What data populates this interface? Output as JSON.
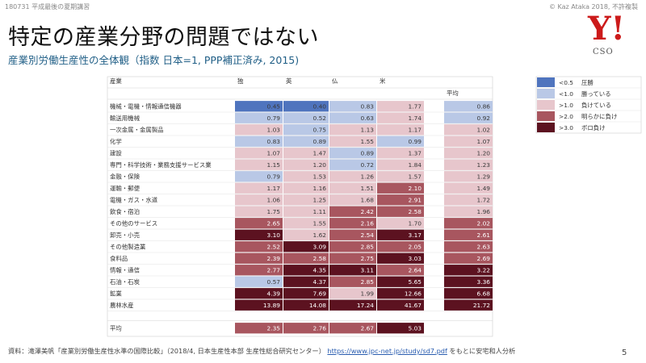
{
  "header": {
    "left": "180731 平成最後の夏期講習",
    "right": "© Kaz Ataka 2018, 不許複製"
  },
  "title": "特定の産業分野の問題ではない",
  "subtitle": "産業別労働生産性の全体観（指数 日本=1, PPP補正済み, 2015)",
  "logo": {
    "mark": "Y!",
    "sub": "CSO"
  },
  "footer": {
    "text_before": "資料：滝澤美帆「産業別労働生産性水準の国際比較」（2018/4, 日本生産性本部 生産性総合研究センター） ",
    "link": "https://www.jpc-net.jp/study/sd7.pdf",
    "text_after": " をもとに安宅和人分析"
  },
  "page_number": "5",
  "colors": {
    "lt05": "#4f74be",
    "lt10": "#b9c8e6",
    "gt10": "#e7c6cc",
    "gt20": "#a8565f",
    "gt30": "#5c1220",
    "text_dark": "#3a3a3a",
    "text_light": "#ffffff"
  },
  "chart_data": {
    "type": "heatmap",
    "corner_label": "産業",
    "average_header": "平均",
    "columns": [
      "独",
      "英",
      "仏",
      "米"
    ],
    "rows": [
      {
        "label": "機械・電機・情報通信機器",
        "values": [
          0.45,
          0.4,
          0.83,
          1.77
        ],
        "average": 0.86
      },
      {
        "label": "輸送用機械",
        "values": [
          0.79,
          0.52,
          0.63,
          1.74
        ],
        "average": 0.92
      },
      {
        "label": "一次金属・金属製品",
        "values": [
          1.03,
          0.75,
          1.13,
          1.17
        ],
        "average": 1.02
      },
      {
        "label": "化学",
        "values": [
          0.83,
          0.89,
          1.55,
          0.99
        ],
        "average": 1.07
      },
      {
        "label": "建設",
        "values": [
          1.07,
          1.47,
          0.89,
          1.37
        ],
        "average": 1.2
      },
      {
        "label": "専門・科学技術・業務支援サービス業",
        "values": [
          1.15,
          1.2,
          0.72,
          1.84
        ],
        "average": 1.23
      },
      {
        "label": "金融・保険",
        "values": [
          0.79,
          1.53,
          1.26,
          1.57
        ],
        "average": 1.29
      },
      {
        "label": "運輸・郵便",
        "values": [
          1.17,
          1.16,
          1.51,
          2.1
        ],
        "average": 1.49
      },
      {
        "label": "電機・ガス・水道",
        "values": [
          1.06,
          1.25,
          1.68,
          2.91
        ],
        "average": 1.72
      },
      {
        "label": "飲食・宿泊",
        "values": [
          1.75,
          1.11,
          2.42,
          2.58
        ],
        "average": 1.96
      },
      {
        "label": "その他のサービス",
        "values": [
          2.65,
          1.55,
          2.16,
          1.7
        ],
        "average": 2.02
      },
      {
        "label": "卸売・小売",
        "values": [
          3.1,
          1.62,
          2.54,
          3.17
        ],
        "average": 2.61
      },
      {
        "label": "その他製造業",
        "values": [
          2.52,
          3.09,
          2.85,
          2.05
        ],
        "average": 2.63
      },
      {
        "label": "食料品",
        "values": [
          2.39,
          2.58,
          2.75,
          3.03
        ],
        "average": 2.69
      },
      {
        "label": "情報・通信",
        "values": [
          2.77,
          4.35,
          3.11,
          2.64
        ],
        "average": 3.22
      },
      {
        "label": "石油・石炭",
        "values": [
          0.57,
          4.37,
          2.85,
          5.65
        ],
        "average": 3.36
      },
      {
        "label": "鉱業",
        "values": [
          4.39,
          7.69,
          1.99,
          12.66
        ],
        "average": 6.68
      },
      {
        "label": "農林水産",
        "values": [
          13.89,
          14.08,
          17.24,
          41.67
        ],
        "average": 21.72
      }
    ],
    "footer_row": {
      "label": "平均",
      "values": [
        2.35,
        2.76,
        2.67,
        5.03
      ]
    },
    "legend": [
      {
        "key": "<0.5",
        "desc": "圧勝",
        "color": "#4f74be"
      },
      {
        "key": "<1.0",
        "desc": "勝っている",
        "color": "#b9c8e6"
      },
      {
        "key": ">1.0",
        "desc": "負けている",
        "color": "#e7c6cc"
      },
      {
        "key": ">2.0",
        "desc": "明らかに負け",
        "color": "#a8565f"
      },
      {
        "key": ">3.0",
        "desc": "ボロ負け",
        "color": "#5c1220"
      }
    ],
    "legend_position": "top-right"
  }
}
